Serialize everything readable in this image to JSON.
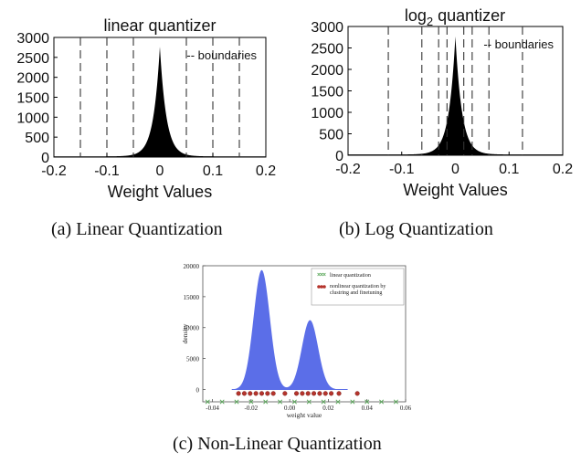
{
  "captions": {
    "a": "(a)  Linear  Quantization",
    "b": "(b)  Log  Quantization",
    "c": "(c)  Non-Linear  Quantization"
  },
  "chart_data": [
    {
      "id": "a",
      "type": "histogram",
      "title": "linear quantizer",
      "xlabel": "Weight Values",
      "ylabel": "",
      "xlim": [
        -0.2,
        0.2
      ],
      "ylim": [
        0,
        3000
      ],
      "xticks": [
        "-0.2",
        "-0.1",
        "0",
        "0.1",
        "0.2"
      ],
      "yticks": [
        "0",
        "500",
        "1000",
        "1500",
        "2000",
        "2500",
        "3000"
      ],
      "legend": "-- boundaries",
      "peak": 2750,
      "boundaries": [
        -0.15,
        -0.1,
        -0.05,
        0.05,
        0.1,
        0.15
      ]
    },
    {
      "id": "b",
      "type": "histogram",
      "title_base": "log",
      "title_sub": "2",
      "title_rest": " quantizer",
      "xlabel": "Weight Values",
      "ylabel": "",
      "xlim": [
        -0.2,
        0.2
      ],
      "ylim": [
        0,
        3000
      ],
      "xticks": [
        "-0.2",
        "-0.1",
        "0",
        "0.1",
        "0.2"
      ],
      "yticks": [
        "0",
        "500",
        "1000",
        "1500",
        "2000",
        "2500",
        "3000"
      ],
      "legend": "-- boundaries",
      "peak": 2750,
      "boundaries": [
        -0.125,
        -0.0625,
        -0.03125,
        -0.015625,
        0.015625,
        0.03125,
        0.0625,
        0.125
      ]
    },
    {
      "id": "c",
      "type": "area",
      "xlabel": "weight value",
      "ylabel": "density",
      "xlim": [
        -0.045,
        0.06
      ],
      "ylim": [
        -2000,
        20000
      ],
      "xticks": [
        "-0.04",
        "-0.02",
        "0.00",
        "0.02",
        "0.04",
        "0.06"
      ],
      "yticks": [
        "0",
        "5000",
        "10000",
        "15000",
        "20000"
      ],
      "fill_color": "#5b6ee8",
      "density_peaks": [
        {
          "center": -0.0145,
          "height": 19300
        },
        {
          "center": 0.0105,
          "height": 11200
        }
      ],
      "series": [
        {
          "name": "linear quantization",
          "marker": "x",
          "color": "#5aa85a",
          "x": [
            -0.0425,
            -0.035,
            -0.0275,
            -0.02,
            -0.0125,
            -0.005,
            0.0025,
            0.01,
            0.0175,
            0.025,
            0.0325,
            0.04,
            0.0475,
            0.055
          ],
          "y": [
            -2000,
            -2000,
            -2000,
            -2000,
            -2000,
            -2000,
            -2000,
            -2000,
            -2000,
            -2000,
            -2000,
            -2000,
            -2000,
            -2000
          ]
        },
        {
          "name": "nonlinear quantization by clustring and finetuning",
          "marker": "o",
          "color": "#b5342c",
          "x": [
            -0.0265,
            -0.0235,
            -0.0205,
            -0.0175,
            -0.0145,
            -0.0115,
            -0.0085,
            -0.0025,
            0.0035,
            0.0065,
            0.0095,
            0.0125,
            0.0155,
            0.0185,
            0.0215,
            0.0255,
            0.035
          ],
          "y": [
            -650,
            -650,
            -650,
            -650,
            -650,
            -650,
            -650,
            -650,
            -650,
            -650,
            -650,
            -650,
            -650,
            -650,
            -650,
            -650,
            -650
          ]
        }
      ],
      "legend_labels": [
        "linear quantization",
        "nonlinear quantization by",
        "clustring and finetuning"
      ]
    }
  ]
}
